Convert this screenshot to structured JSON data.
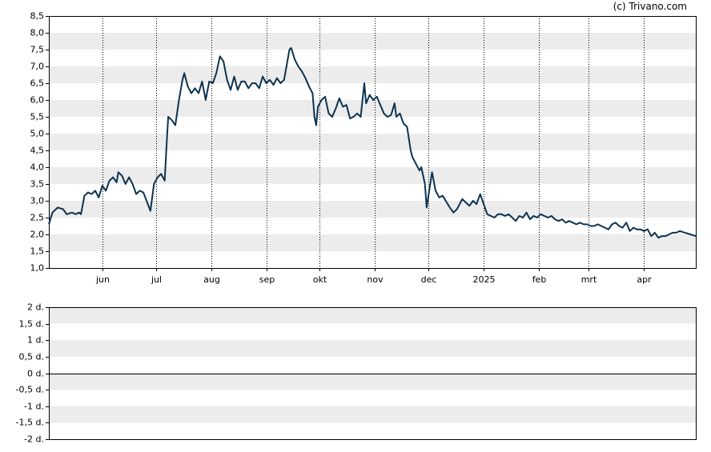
{
  "credit": "(c) Trivano.com",
  "colors": {
    "line": "#0d3350",
    "band": "#ececec",
    "frame": "#000000",
    "gridline": "#000000"
  },
  "chart_data": [
    {
      "type": "line",
      "title": "",
      "grid": "alternating horizontal bands, dotted vertical month lines",
      "ylim": [
        1.0,
        8.5
      ],
      "y_ticks": [
        "1,0",
        "1,5",
        "2,0",
        "2,5",
        "3,0",
        "3,5",
        "4,0",
        "4,5",
        "5,0",
        "5,5",
        "6,0",
        "6,5",
        "7,0",
        "7,5",
        "8,0",
        "8,5"
      ],
      "x_ticks": [
        {
          "label": "jun",
          "date": "2024-06-01"
        },
        {
          "label": "jul",
          "date": "2024-07-01"
        },
        {
          "label": "aug",
          "date": "2024-08-01"
        },
        {
          "label": "sep",
          "date": "2024-09-01"
        },
        {
          "label": "okt",
          "date": "2024-10-01"
        },
        {
          "label": "nov",
          "date": "2024-11-01"
        },
        {
          "label": "dec",
          "date": "2024-12-01"
        },
        {
          "label": "2025",
          "date": "2025-01-01"
        },
        {
          "label": "feb",
          "date": "2025-02-01"
        },
        {
          "label": "mrt",
          "date": "2025-03-01"
        },
        {
          "label": "apr",
          "date": "2025-04-01"
        }
      ],
      "x_range": [
        "2024-05-02",
        "2025-04-30"
      ],
      "series": [
        {
          "points": [
            [
              "2024-05-02",
              2.3
            ],
            [
              "2024-05-04",
              2.65
            ],
            [
              "2024-05-07",
              2.8
            ],
            [
              "2024-05-10",
              2.75
            ],
            [
              "2024-05-12",
              2.6
            ],
            [
              "2024-05-15",
              2.65
            ],
            [
              "2024-05-17",
              2.6
            ],
            [
              "2024-05-19",
              2.65
            ],
            [
              "2024-05-20",
              2.6
            ],
            [
              "2024-05-22",
              3.15
            ],
            [
              "2024-05-24",
              3.25
            ],
            [
              "2024-05-26",
              3.2
            ],
            [
              "2024-05-28",
              3.3
            ],
            [
              "2024-05-30",
              3.1
            ],
            [
              "2024-06-01",
              3.45
            ],
            [
              "2024-06-03",
              3.3
            ],
            [
              "2024-06-05",
              3.6
            ],
            [
              "2024-06-07",
              3.7
            ],
            [
              "2024-06-09",
              3.55
            ],
            [
              "2024-06-10",
              3.85
            ],
            [
              "2024-06-12",
              3.75
            ],
            [
              "2024-06-14",
              3.5
            ],
            [
              "2024-06-16",
              3.7
            ],
            [
              "2024-06-18",
              3.5
            ],
            [
              "2024-06-20",
              3.2
            ],
            [
              "2024-06-22",
              3.3
            ],
            [
              "2024-06-24",
              3.25
            ],
            [
              "2024-06-28",
              2.7
            ],
            [
              "2024-06-30",
              3.5
            ],
            [
              "2024-07-02",
              3.7
            ],
            [
              "2024-07-04",
              3.8
            ],
            [
              "2024-07-06",
              3.6
            ],
            [
              "2024-07-07",
              4.6
            ],
            [
              "2024-07-08",
              5.5
            ],
            [
              "2024-07-10",
              5.4
            ],
            [
              "2024-07-12",
              5.25
            ],
            [
              "2024-07-14",
              6.0
            ],
            [
              "2024-07-16",
              6.6
            ],
            [
              "2024-07-17",
              6.8
            ],
            [
              "2024-07-19",
              6.4
            ],
            [
              "2024-07-21",
              6.2
            ],
            [
              "2024-07-23",
              6.35
            ],
            [
              "2024-07-25",
              6.2
            ],
            [
              "2024-07-27",
              6.55
            ],
            [
              "2024-07-29",
              6.0
            ],
            [
              "2024-07-31",
              6.55
            ],
            [
              "2024-08-02",
              6.5
            ],
            [
              "2024-08-04",
              6.8
            ],
            [
              "2024-08-06",
              7.3
            ],
            [
              "2024-08-08",
              7.15
            ],
            [
              "2024-08-10",
              6.6
            ],
            [
              "2024-08-12",
              6.3
            ],
            [
              "2024-08-14",
              6.7
            ],
            [
              "2024-08-16",
              6.3
            ],
            [
              "2024-08-18",
              6.55
            ],
            [
              "2024-08-20",
              6.55
            ],
            [
              "2024-08-22",
              6.35
            ],
            [
              "2024-08-24",
              6.5
            ],
            [
              "2024-08-26",
              6.5
            ],
            [
              "2024-08-28",
              6.35
            ],
            [
              "2024-08-30",
              6.7
            ],
            [
              "2024-09-01",
              6.5
            ],
            [
              "2024-09-03",
              6.6
            ],
            [
              "2024-09-05",
              6.45
            ],
            [
              "2024-09-07",
              6.65
            ],
            [
              "2024-09-09",
              6.5
            ],
            [
              "2024-09-11",
              6.6
            ],
            [
              "2024-09-13",
              7.2
            ],
            [
              "2024-09-14",
              7.5
            ],
            [
              "2024-09-15",
              7.55
            ],
            [
              "2024-09-17",
              7.2
            ],
            [
              "2024-09-19",
              7.0
            ],
            [
              "2024-09-21",
              6.85
            ],
            [
              "2024-09-23",
              6.65
            ],
            [
              "2024-09-25",
              6.4
            ],
            [
              "2024-09-27",
              6.2
            ],
            [
              "2024-09-28",
              5.5
            ],
            [
              "2024-09-29",
              5.25
            ],
            [
              "2024-09-30",
              5.8
            ],
            [
              "2024-10-02",
              6.0
            ],
            [
              "2024-10-04",
              6.1
            ],
            [
              "2024-10-06",
              5.6
            ],
            [
              "2024-10-08",
              5.5
            ],
            [
              "2024-10-10",
              5.75
            ],
            [
              "2024-10-12",
              6.05
            ],
            [
              "2024-10-14",
              5.8
            ],
            [
              "2024-10-16",
              5.85
            ],
            [
              "2024-10-18",
              5.45
            ],
            [
              "2024-10-20",
              5.5
            ],
            [
              "2024-10-22",
              5.6
            ],
            [
              "2024-10-24",
              5.5
            ],
            [
              "2024-10-26",
              6.5
            ],
            [
              "2024-10-27",
              5.9
            ],
            [
              "2024-10-29",
              6.15
            ],
            [
              "2024-10-31",
              6.0
            ],
            [
              "2024-11-02",
              6.1
            ],
            [
              "2024-11-04",
              5.85
            ],
            [
              "2024-11-06",
              5.6
            ],
            [
              "2024-11-08",
              5.5
            ],
            [
              "2024-11-10",
              5.55
            ],
            [
              "2024-11-12",
              5.9
            ],
            [
              "2024-11-13",
              5.5
            ],
            [
              "2024-11-15",
              5.6
            ],
            [
              "2024-11-17",
              5.3
            ],
            [
              "2024-11-19",
              5.2
            ],
            [
              "2024-11-21",
              4.5
            ],
            [
              "2024-11-22",
              4.3
            ],
            [
              "2024-11-24",
              4.1
            ],
            [
              "2024-11-26",
              3.9
            ],
            [
              "2024-11-27",
              4.0
            ],
            [
              "2024-11-29",
              3.5
            ],
            [
              "2024-11-30",
              2.8
            ],
            [
              "2024-12-02",
              3.5
            ],
            [
              "2024-12-03",
              3.85
            ],
            [
              "2024-12-05",
              3.3
            ],
            [
              "2024-12-07",
              3.1
            ],
            [
              "2024-12-09",
              3.15
            ],
            [
              "2024-12-13",
              2.8
            ],
            [
              "2024-12-15",
              2.65
            ],
            [
              "2024-12-17",
              2.75
            ],
            [
              "2024-12-20",
              3.05
            ],
            [
              "2024-12-22",
              2.95
            ],
            [
              "2024-12-24",
              2.85
            ],
            [
              "2024-12-26",
              3.0
            ],
            [
              "2024-12-28",
              2.9
            ],
            [
              "2024-12-30",
              3.2
            ],
            [
              "2025-01-01",
              2.9
            ],
            [
              "2025-01-03",
              2.6
            ],
            [
              "2025-01-05",
              2.55
            ],
            [
              "2025-01-07",
              2.5
            ],
            [
              "2025-01-09",
              2.6
            ],
            [
              "2025-01-11",
              2.6
            ],
            [
              "2025-01-13",
              2.55
            ],
            [
              "2025-01-15",
              2.6
            ],
            [
              "2025-01-17",
              2.5
            ],
            [
              "2025-01-19",
              2.4
            ],
            [
              "2025-01-21",
              2.55
            ],
            [
              "2025-01-23",
              2.5
            ],
            [
              "2025-01-25",
              2.65
            ],
            [
              "2025-01-27",
              2.45
            ],
            [
              "2025-01-29",
              2.55
            ],
            [
              "2025-01-31",
              2.5
            ],
            [
              "2025-02-02",
              2.6
            ],
            [
              "2025-02-04",
              2.55
            ],
            [
              "2025-02-06",
              2.5
            ],
            [
              "2025-02-08",
              2.55
            ],
            [
              "2025-02-10",
              2.45
            ],
            [
              "2025-02-12",
              2.4
            ],
            [
              "2025-02-14",
              2.45
            ],
            [
              "2025-02-16",
              2.35
            ],
            [
              "2025-02-18",
              2.4
            ],
            [
              "2025-02-20",
              2.35
            ],
            [
              "2025-02-22",
              2.3
            ],
            [
              "2025-02-24",
              2.35
            ],
            [
              "2025-02-26",
              2.3
            ],
            [
              "2025-02-28",
              2.3
            ],
            [
              "2025-03-02",
              2.25
            ],
            [
              "2025-03-04",
              2.25
            ],
            [
              "2025-03-06",
              2.3
            ],
            [
              "2025-03-08",
              2.25
            ],
            [
              "2025-03-10",
              2.2
            ],
            [
              "2025-03-12",
              2.15
            ],
            [
              "2025-03-14",
              2.3
            ],
            [
              "2025-03-16",
              2.35
            ],
            [
              "2025-03-18",
              2.25
            ],
            [
              "2025-03-20",
              2.2
            ],
            [
              "2025-03-22",
              2.35
            ],
            [
              "2025-03-24",
              2.1
            ],
            [
              "2025-03-26",
              2.2
            ],
            [
              "2025-03-28",
              2.15
            ],
            [
              "2025-03-30",
              2.15
            ],
            [
              "2025-04-01",
              2.1
            ],
            [
              "2025-04-03",
              2.15
            ],
            [
              "2025-04-05",
              1.95
            ],
            [
              "2025-04-07",
              2.05
            ],
            [
              "2025-04-09",
              1.9
            ],
            [
              "2025-04-11",
              1.95
            ],
            [
              "2025-04-13",
              1.95
            ],
            [
              "2025-04-15",
              2.0
            ],
            [
              "2025-04-17",
              2.05
            ],
            [
              "2025-04-19",
              2.05
            ],
            [
              "2025-04-21",
              2.1
            ],
            [
              "2025-04-24",
              2.05
            ],
            [
              "2025-04-27",
              2.0
            ],
            [
              "2025-04-30",
              1.95
            ]
          ]
        }
      ]
    },
    {
      "type": "bar",
      "title": "",
      "grid": "alternating horizontal bands",
      "ylim": [
        -2,
        2
      ],
      "y_ticks": [
        "2 d.",
        "1,5 d.",
        "1 d.",
        "0,5 d.",
        "0 d.",
        "-0,5 d.",
        "-1 d.",
        "-1,5 d.",
        "-2 d."
      ],
      "series": []
    }
  ]
}
